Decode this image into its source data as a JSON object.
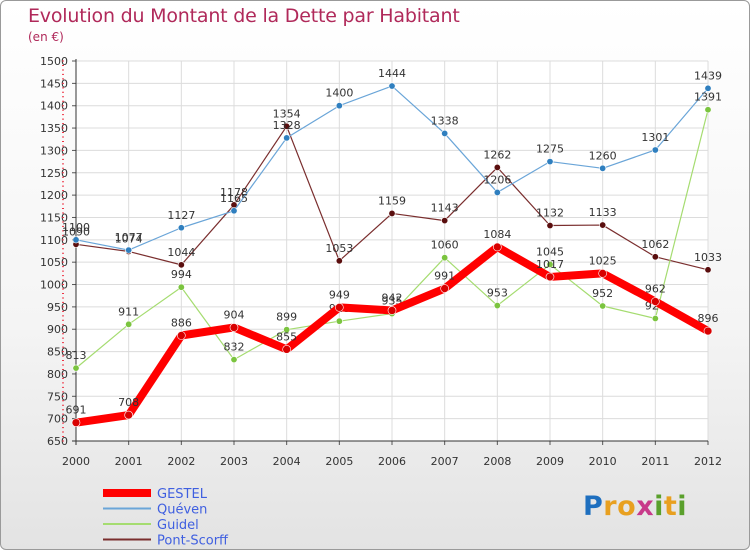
{
  "title": "Evolution du Montant de la Dette par Habitant",
  "subtitle": "(en €)",
  "brand": {
    "p": "P",
    "r": "r",
    "o": "o",
    "x": "x",
    "i": "i",
    "t": "t",
    "i2": "i"
  },
  "colors": {
    "GESTEL": "#ff0000",
    "Quéven": "#4f8fcf",
    "Guidel": "#8fd14f",
    "Pont-Scorff": "#6b1a1a"
  },
  "chart_data": {
    "type": "line",
    "title": "Evolution du Montant de la Dette par Habitant",
    "ylabel": "(en €)",
    "ylim": [
      650,
      1500
    ],
    "x": [
      "2000",
      "2001",
      "2002",
      "2003",
      "2004",
      "2005",
      "2006",
      "2007",
      "2008",
      "2009",
      "2010",
      "2011",
      "2012"
    ],
    "yticks": [
      "1500",
      "1450",
      "1400",
      "1350",
      "1300",
      "1250",
      "1200",
      "1150",
      "1100",
      "1050",
      "1000",
      "950",
      "900",
      "850",
      "800",
      "750",
      "700",
      "650"
    ],
    "grid": true,
    "legend": "bottom-left",
    "series": [
      {
        "name": "Pont-Scorff",
        "values": [
          1090,
          1074,
          1044,
          1178,
          1354,
          1053,
          1159,
          1143,
          1262,
          1132,
          1133,
          1062,
          1033
        ]
      },
      {
        "name": "Quéven",
        "values": [
          1100,
          1077,
          1127,
          1165,
          1328,
          1400,
          1444,
          1338,
          1206,
          1275,
          1260,
          1301,
          1439
        ]
      },
      {
        "name": "Guidel",
        "values": [
          813,
          911,
          994,
          832,
          899,
          918,
          935,
          1060,
          953,
          1045,
          952,
          924,
          1391
        ]
      },
      {
        "name": "GESTEL",
        "values": [
          691,
          708,
          886,
          904,
          855,
          949,
          942,
          991,
          1084,
          1017,
          1025,
          962,
          896
        ]
      }
    ]
  }
}
